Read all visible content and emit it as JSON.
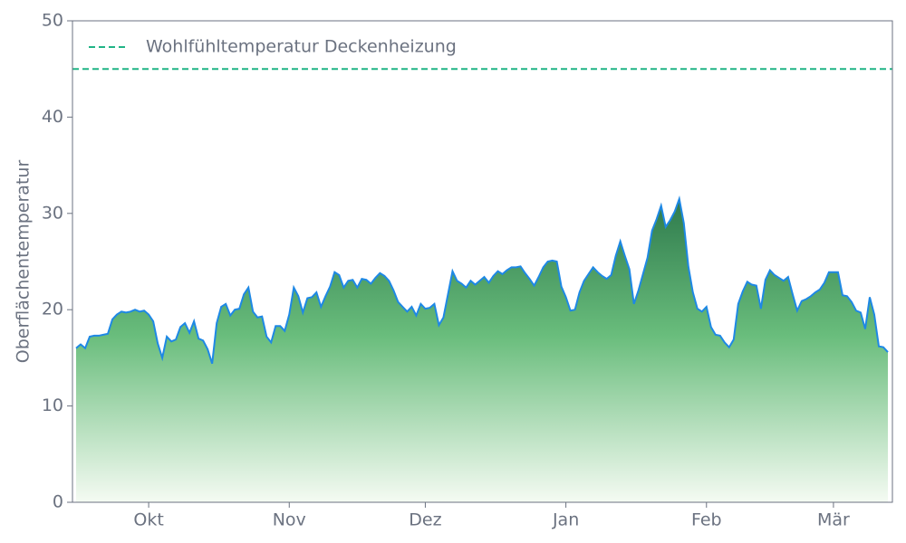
{
  "chart_data": {
    "type": "area",
    "ylabel": "Oberflächentemperatur",
    "xlim": [
      -16.8,
      164
    ],
    "ylim": [
      0,
      50
    ],
    "yticks": [
      0,
      10,
      20,
      30,
      40,
      50
    ],
    "xticks": [
      {
        "value": 0,
        "label": "Okt"
      },
      {
        "value": 31,
        "label": "Nov"
      },
      {
        "value": 61,
        "label": "Dez"
      },
      {
        "value": 92,
        "label": "Jan"
      },
      {
        "value": 123,
        "label": "Feb"
      },
      {
        "value": 151,
        "label": "Mär"
      }
    ],
    "x": [
      -16,
      -15,
      -14,
      -13,
      -12,
      -11,
      -10,
      -9,
      -8,
      -7,
      -6,
      -5,
      -4,
      -3,
      -2,
      -1,
      0,
      1,
      2,
      3,
      4,
      5,
      6,
      7,
      8,
      9,
      10,
      11,
      12,
      13,
      14,
      15,
      16,
      17,
      18,
      19,
      20,
      21,
      22,
      23,
      24,
      25,
      26,
      27,
      28,
      29,
      30,
      31,
      32,
      33,
      34,
      35,
      36,
      37,
      38,
      39,
      40,
      41,
      42,
      43,
      44,
      45,
      46,
      47,
      48,
      49,
      50,
      51,
      52,
      53,
      54,
      55,
      56,
      57,
      58,
      59,
      60,
      61,
      62,
      63,
      64,
      65,
      66,
      67,
      68,
      69,
      70,
      71,
      72,
      73,
      74,
      75,
      76,
      77,
      78,
      79,
      80,
      81,
      82,
      83,
      84,
      85,
      86,
      87,
      88,
      89,
      90,
      91,
      92,
      93,
      94,
      95,
      96,
      97,
      98,
      99,
      100,
      101,
      102,
      103,
      104,
      105,
      106,
      107,
      108,
      109,
      110,
      111,
      112,
      113,
      114,
      115,
      116,
      117,
      118,
      119,
      120,
      121,
      122,
      123,
      124,
      125,
      126,
      127,
      128,
      129,
      130,
      131,
      132,
      133,
      134,
      135,
      136,
      137,
      138,
      139,
      140,
      141,
      142,
      143,
      144,
      145,
      146,
      147,
      148,
      149,
      150,
      151,
      152,
      153,
      154,
      155,
      156,
      157,
      158,
      159,
      160,
      161,
      162,
      163
    ],
    "series": [
      {
        "color": "#1e88e5",
        "values": [
          16.0,
          16.4,
          16.0,
          17.2,
          17.3,
          17.3,
          17.4,
          17.5,
          19.0,
          19.5,
          19.8,
          19.7,
          19.8,
          20.0,
          19.8,
          19.9,
          19.5,
          18.8,
          16.5,
          15.0,
          17.2,
          16.7,
          16.9,
          18.2,
          18.6,
          17.6,
          18.8,
          17.0,
          16.8,
          15.9,
          14.4,
          18.6,
          20.3,
          20.6,
          19.4,
          20.0,
          20.1,
          21.6,
          22.3,
          19.8,
          19.2,
          19.3,
          17.2,
          16.6,
          18.3,
          18.3,
          17.8,
          19.5,
          22.3,
          21.4,
          19.7,
          21.2,
          21.3,
          21.8,
          20.3,
          21.4,
          22.4,
          23.9,
          23.6,
          22.3,
          23.0,
          23.1,
          22.3,
          23.2,
          23.1,
          22.7,
          23.3,
          23.8,
          23.5,
          23.0,
          22.0,
          20.8,
          20.3,
          19.8,
          20.3,
          19.4,
          20.6,
          20.1,
          20.2,
          20.6,
          18.4,
          19.2,
          21.6,
          24.0,
          23.0,
          22.7,
          22.3,
          23.0,
          22.6,
          23.0,
          23.4,
          22.8,
          23.5,
          24.0,
          23.7,
          24.1,
          24.4,
          24.4,
          24.5,
          23.8,
          23.2,
          22.5,
          23.4,
          24.4,
          25.0,
          25.1,
          25.0,
          22.4,
          21.3,
          19.9,
          20.0,
          21.8,
          23.0,
          23.7,
          24.4,
          23.9,
          23.5,
          23.2,
          23.6,
          25.6,
          27.1,
          25.6,
          24.2,
          20.6,
          22.0,
          23.7,
          25.4,
          28.2,
          29.4,
          30.8,
          28.6,
          29.3,
          30.2,
          31.5,
          29.0,
          24.5,
          21.8,
          20.1,
          19.8,
          20.3,
          18.2,
          17.4,
          17.3,
          16.6,
          16.1,
          16.9,
          20.6,
          21.9,
          22.9,
          22.6,
          22.5,
          20.1,
          23.1,
          24.1,
          23.6,
          23.3,
          23.0,
          23.4,
          21.6,
          19.9,
          20.9,
          21.1,
          21.4,
          21.8,
          22.1,
          22.8,
          23.9,
          23.9,
          23.9,
          21.5,
          21.4,
          20.8,
          19.9,
          19.7,
          18.0,
          21.3,
          19.5,
          16.2,
          16.1,
          15.6
        ]
      }
    ],
    "hlines": [
      {
        "name": "Wohlfühltemperatur Deckenheizung",
        "value": 45,
        "color": "#20b486"
      }
    ],
    "legend": "upper left"
  }
}
